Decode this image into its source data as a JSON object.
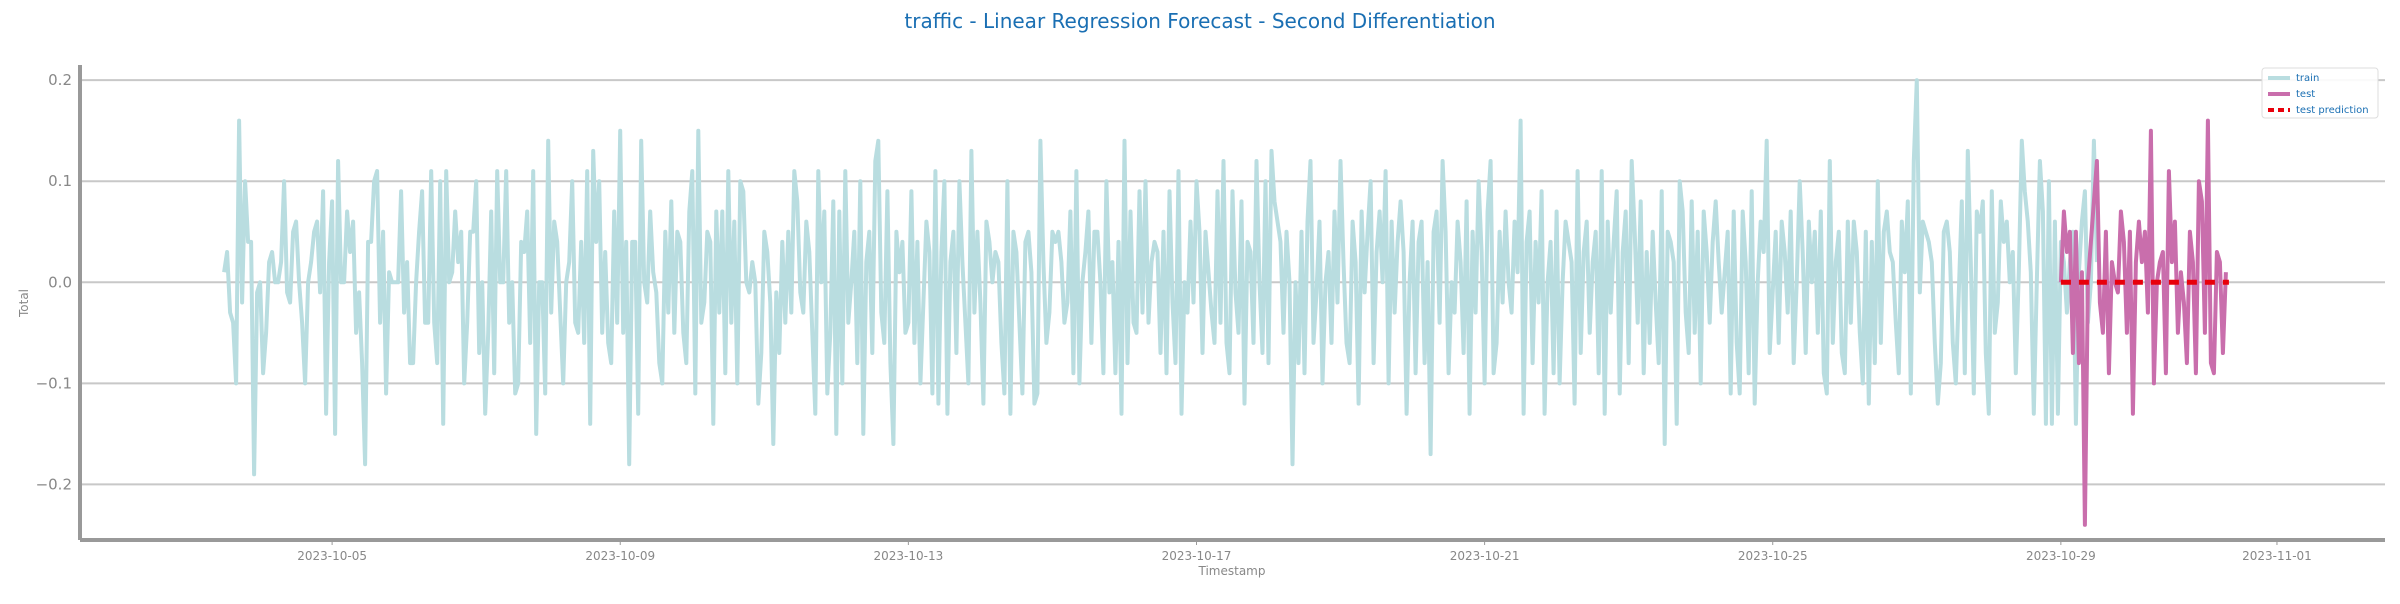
{
  "chart_data": {
    "type": "line",
    "title": "traffic - Linear Regression Forecast - Second Differentiation",
    "xlabel": "Timestamp",
    "ylabel": "Total",
    "xlim": [
      "2023-10-01T12:00",
      "2023-11-02T12:00"
    ],
    "ylim": [
      -0.255,
      0.215
    ],
    "x_ticks": [
      "2023-10-05",
      "2023-10-09",
      "2023-10-13",
      "2023-10-17",
      "2023-10-21",
      "2023-10-25",
      "2023-10-29",
      "2023-11-01"
    ],
    "y_ticks": [
      0.2,
      0.1,
      0.0,
      -0.1,
      -0.2
    ],
    "y_tick_labels": [
      "0.2",
      "0.1",
      "0.0",
      "−0.1",
      "−0.2"
    ],
    "grid": "horizontal",
    "legend_position": "top-right",
    "series": [
      {
        "name": "train",
        "color": "#b9dde0",
        "style": "solid",
        "x_start": "2023-10-03T12:00",
        "x_step_hours": 1,
        "count": 610,
        "point_density": "hourly (approx. 610 points, Oct 3 to Oct 29)",
        "values": [
          0.01,
          0.03,
          -0.03,
          -0.04,
          -0.1,
          0.16,
          -0.02,
          0.1,
          0.04,
          0.04,
          -0.19,
          -0.01,
          0.0,
          -0.09,
          -0.05,
          0.02,
          0.03,
          0.0,
          0.0,
          0.02,
          0.1,
          -0.01,
          -0.02,
          0.05,
          0.06,
          0.0,
          -0.04,
          -0.1,
          0.0,
          0.02,
          0.05,
          0.06,
          -0.01,
          0.09,
          -0.13,
          0.02,
          0.08,
          -0.15,
          0.12,
          0.0,
          0.0,
          0.07,
          0.03,
          0.06,
          -0.05,
          -0.01,
          -0.08,
          -0.18,
          0.04,
          0.04,
          0.1,
          0.11,
          -0.04,
          0.05,
          -0.11,
          0.01,
          0.0,
          0.0,
          0.0,
          0.09,
          -0.03,
          0.02,
          -0.08,
          -0.08,
          0.0,
          0.05,
          0.09,
          -0.04,
          -0.04,
          0.11,
          -0.04,
          -0.08,
          0.1,
          -0.14,
          0.11,
          0.0,
          0.01,
          0.07,
          0.02,
          0.05,
          -0.1,
          -0.04,
          0.05,
          0.05,
          0.1,
          -0.07,
          0.0,
          -0.13,
          -0.05,
          0.07,
          -0.09,
          0.11,
          0.0,
          0.0,
          0.11,
          -0.04,
          0.0,
          -0.11,
          -0.1,
          0.04,
          0.03,
          0.07,
          -0.06,
          0.11,
          -0.15,
          0.0,
          0.0,
          -0.11,
          0.14,
          -0.03,
          0.06,
          0.04,
          -0.03,
          -0.1,
          0.0,
          0.02,
          0.1,
          -0.04,
          -0.05,
          0.04,
          -0.06,
          0.11,
          -0.14,
          0.13,
          0.04,
          0.1,
          -0.05,
          0.03,
          -0.06,
          -0.08,
          0.07,
          -0.04,
          0.15,
          -0.05,
          0.04,
          -0.18,
          0.04,
          0.04,
          -0.13,
          0.14,
          0.0,
          -0.02,
          0.07,
          0.01,
          -0.01,
          -0.08,
          -0.1,
          0.05,
          -0.03,
          0.08,
          -0.05,
          0.05,
          0.04,
          -0.05,
          -0.08,
          0.07,
          0.11,
          -0.11,
          0.15,
          -0.04,
          -0.02,
          0.05,
          0.04,
          -0.14,
          0.07,
          -0.03,
          0.07,
          -0.09,
          0.11,
          -0.04,
          0.06,
          -0.1,
          0.1,
          0.09,
          0.0,
          -0.01,
          0.02,
          0.0,
          -0.12,
          -0.07,
          0.05,
          0.03,
          -0.02,
          -0.16,
          -0.01,
          -0.07,
          0.04,
          -0.04,
          0.05,
          -0.03,
          0.11,
          0.08,
          -0.01,
          -0.03,
          0.06,
          0.03,
          -0.05,
          -0.13,
          0.11,
          0.0,
          0.07,
          -0.11,
          -0.05,
          0.08,
          -0.15,
          0.07,
          -0.1,
          0.11,
          -0.04,
          0.0,
          0.05,
          -0.08,
          0.1,
          -0.15,
          0.02,
          0.05,
          -0.07,
          0.12,
          0.14,
          -0.03,
          -0.06,
          0.09,
          -0.08,
          -0.16,
          0.05,
          0.01,
          0.04,
          -0.05,
          -0.04,
          0.09,
          -0.06,
          0.04,
          -0.1,
          -0.02,
          0.06,
          0.03,
          -0.11,
          0.11,
          -0.12,
          0.03,
          0.1,
          -0.13,
          0.02,
          0.05,
          -0.07,
          0.1,
          0.02,
          -0.04,
          -0.1,
          0.13,
          -0.03,
          0.05,
          -0.02,
          -0.12,
          0.06,
          0.04,
          0.0,
          0.03,
          0.02,
          -0.06,
          -0.11,
          0.1,
          -0.13,
          0.05,
          0.03,
          -0.04,
          -0.11,
          0.04,
          0.05,
          0.01,
          -0.12,
          -0.11,
          0.14,
          0.02,
          -0.06,
          -0.03,
          0.05,
          0.04,
          0.05,
          0.02,
          -0.04,
          -0.02,
          0.07,
          -0.09,
          0.11,
          -0.1,
          0.0,
          0.03,
          0.07,
          -0.06,
          0.05,
          0.05,
          0.0,
          -0.09,
          0.1,
          -0.01,
          0.02,
          -0.09,
          0.04,
          -0.13,
          0.14,
          -0.08,
          0.07,
          -0.04,
          -0.05,
          0.09,
          -0.03,
          0.1,
          -0.04,
          0.02,
          0.04,
          0.03,
          -0.07,
          0.05,
          -0.09,
          0.09,
          -0.02,
          -0.08,
          0.11,
          -0.13,
          0.0,
          -0.03,
          0.06,
          -0.02,
          0.1,
          0.05,
          -0.07,
          0.05,
          0.01,
          -0.03,
          -0.06,
          0.09,
          -0.04,
          0.12,
          -0.06,
          -0.09,
          0.09,
          -0.01,
          -0.05,
          0.08,
          -0.12,
          0.04,
          0.03,
          -0.06,
          0.12,
          0.0,
          -0.07,
          0.1,
          -0.08,
          0.13,
          0.08,
          0.06,
          0.04,
          -0.05,
          0.05,
          0.0,
          -0.18,
          0.0,
          -0.08,
          0.05,
          -0.09,
          0.06,
          0.12,
          -0.06,
          -0.01,
          0.06,
          -0.1,
          0.0,
          0.03,
          -0.06,
          0.07,
          -0.02,
          0.12,
          0.02,
          -0.06,
          -0.08,
          0.06,
          0.02,
          -0.12,
          0.07,
          -0.01,
          0.05,
          0.1,
          -0.08,
          0.03,
          0.07,
          0.0,
          0.11,
          -0.1,
          0.06,
          -0.03,
          0.04,
          0.08,
          0.03,
          -0.13,
          0.0,
          0.06,
          -0.09,
          0.04,
          0.06,
          -0.08,
          0.02,
          -0.17,
          0.05,
          0.07,
          -0.04,
          0.12,
          0.05,
          -0.09,
          0.0,
          -0.03,
          0.06,
          0.02,
          -0.07,
          0.08,
          -0.13,
          0.05,
          -0.03,
          0.1,
          0.03,
          -0.1,
          0.07,
          0.12,
          -0.09,
          -0.06,
          0.05,
          -0.02,
          0.07,
          0.0,
          -0.03,
          0.06,
          0.01,
          0.16,
          -0.13,
          0.04,
          0.07,
          -0.08,
          0.04,
          -0.02,
          0.09,
          -0.13,
          0.0,
          0.04,
          -0.09,
          0.07,
          -0.1,
          0.0,
          0.06,
          0.04,
          0.02,
          -0.12,
          0.11,
          -0.07,
          0.03,
          0.06,
          -0.05,
          0.02,
          0.05,
          -0.09,
          0.11,
          -0.13,
          0.06,
          -0.03,
          0.04,
          0.09,
          -0.11,
          0.03,
          0.07,
          -0.08,
          0.12,
          0.05,
          -0.04,
          0.08,
          -0.09,
          0.03,
          -0.06,
          0.05,
          -0.02,
          -0.08,
          0.09,
          -0.16,
          0.05,
          0.04,
          0.02,
          -0.14,
          0.1,
          0.07,
          -0.03,
          -0.07,
          0.08,
          -0.05,
          0.05,
          -0.1,
          0.07,
          0.03,
          -0.04,
          0.04,
          0.08,
          0.02,
          -0.03,
          0.01,
          0.05,
          -0.11,
          0.07,
          -0.06,
          -0.11,
          0.07,
          0.02,
          -0.09,
          0.09,
          -0.12,
          0.0,
          0.06,
          0.03,
          0.14,
          -0.07,
          -0.01,
          0.05,
          -0.06,
          0.06,
          0.03,
          -0.03,
          0.07,
          -0.08,
          0.0,
          0.1,
          0.03,
          -0.07,
          0.06,
          0.0,
          0.05,
          -0.05,
          0.07,
          -0.09,
          -0.11,
          0.12,
          -0.06,
          0.02,
          0.05,
          -0.07,
          -0.09,
          0.06,
          -0.04,
          0.06,
          0.03,
          -0.05,
          -0.1,
          0.05,
          -0.12,
          0.04,
          -0.08,
          0.1,
          -0.06,
          0.05,
          0.07,
          0.03,
          0.02,
          -0.04,
          -0.09,
          0.06,
          0.01,
          0.08,
          -0.11,
          0.12,
          0.2,
          -0.01,
          0.06,
          0.05,
          0.04,
          0.02,
          -0.06,
          -0.12,
          -0.08,
          0.05,
          0.06,
          0.03,
          -0.06,
          -0.1,
          -0.01,
          0.08,
          -0.09,
          0.13,
          0.02,
          -0.11,
          0.07,
          0.05,
          0.08,
          -0.07,
          -0.13,
          0.09,
          -0.05,
          -0.02,
          0.08,
          0.04,
          0.06,
          0.0,
          0.03,
          -0.09,
          0.01,
          0.14,
          0.09,
          0.06,
          0.01,
          -0.13,
          0.0,
          0.12,
          0.07,
          -0.14,
          0.1,
          -0.14,
          0.06,
          -0.13,
          0.04,
          0.02,
          -0.03,
          0.02,
          0.05,
          -0.14,
          0.01,
          0.06,
          0.09,
          -0.04,
          0.0,
          0.14,
          0.02
        ]
      },
      {
        "name": "test",
        "color": "#c96eac",
        "style": "solid",
        "x_start": "2023-10-29T00:00",
        "x_step_hours": 1,
        "values": [
          0.0,
          0.07,
          0.03,
          0.05,
          -0.07,
          0.05,
          -0.08,
          0.01,
          -0.24,
          0.0,
          0.04,
          0.08,
          0.12,
          -0.02,
          -0.05,
          0.05,
          -0.09,
          0.02,
          0.0,
          -0.01,
          0.07,
          0.04,
          -0.05,
          0.05,
          -0.13,
          0.02,
          0.06,
          0.02,
          0.05,
          -0.03,
          0.15,
          -0.1,
          0.0,
          0.02,
          0.03,
          -0.09,
          0.11,
          0.02,
          0.06,
          -0.05,
          0.01,
          -0.02,
          -0.08,
          0.05,
          0.02,
          -0.09,
          0.1,
          0.08,
          -0.05,
          0.16,
          -0.08,
          -0.09,
          0.03,
          0.02,
          -0.07,
          0.01
        ]
      },
      {
        "name": "test prediction",
        "color": "#e8000b",
        "style": "dashed",
        "x": [
          "2023-10-29T00:00",
          "2023-10-31T08:00"
        ],
        "values": [
          0.0,
          0.0
        ]
      }
    ]
  }
}
